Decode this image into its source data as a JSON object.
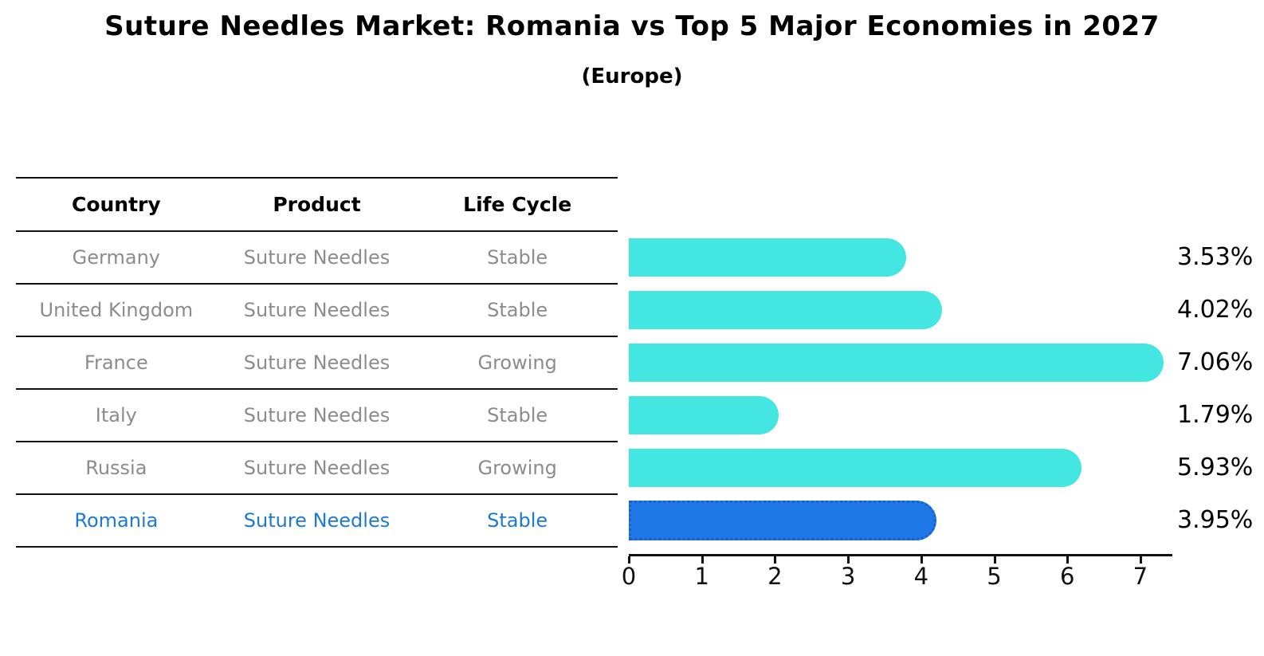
{
  "table": {
    "headers": [
      "Country",
      "Product",
      "Life Cycle"
    ]
  },
  "chart_data": {
    "type": "bar",
    "orientation": "horizontal",
    "title": "Suture Needles Market: Romania vs Top 5 Major Economies in 2027",
    "subtitle": "(Europe)",
    "categories": [
      "Germany",
      "United Kingdom",
      "France",
      "Italy",
      "Russia",
      "Romania"
    ],
    "values": [
      3.53,
      4.02,
      7.06,
      1.79,
      5.93,
      3.95
    ],
    "value_labels": [
      "3.53%",
      "4.02%",
      "7.06%",
      "1.79%",
      "5.93%",
      "3.95%"
    ],
    "rows": [
      {
        "country": "Germany",
        "product": "Suture Needles",
        "life_cycle": "Stable",
        "value": 3.53,
        "value_label": "3.53%",
        "highlight": false
      },
      {
        "country": "United Kingdom",
        "product": "Suture Needles",
        "life_cycle": "Stable",
        "value": 4.02,
        "value_label": "4.02%",
        "highlight": false
      },
      {
        "country": "France",
        "product": "Suture Needles",
        "life_cycle": "Growing",
        "value": 7.06,
        "value_label": "7.06%",
        "highlight": false
      },
      {
        "country": "Italy",
        "product": "Suture Needles",
        "life_cycle": "Stable",
        "value": 1.79,
        "value_label": "1.79%",
        "highlight": false
      },
      {
        "country": "Russia",
        "product": "Suture Needles",
        "life_cycle": "Growing",
        "value": 5.93,
        "value_label": "5.93%",
        "highlight": false
      },
      {
        "country": "Romania",
        "product": "Suture Needles",
        "life_cycle": "Stable",
        "value": 3.95,
        "value_label": "3.95%",
        "highlight": true
      }
    ],
    "x_ticks": [
      0,
      1,
      2,
      3,
      4,
      5,
      6,
      7
    ],
    "xlim": [
      0,
      7.43
    ],
    "xlabel": "",
    "ylabel": "",
    "grid": false,
    "legend": false,
    "colors": {
      "bar": "#43E6E1",
      "highlight_bar": "#1E79E6",
      "highlight_bar_border": "#1A5FD0",
      "row_text": "#8C8C8C",
      "highlight_text": "#1E7AD1",
      "header_text": "#000000",
      "axis": "#111111"
    }
  }
}
